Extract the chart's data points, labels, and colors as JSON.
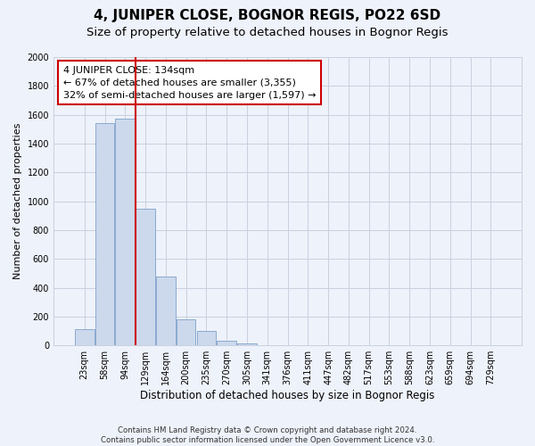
{
  "title": "4, JUNIPER CLOSE, BOGNOR REGIS, PO22 6SD",
  "subtitle": "Size of property relative to detached houses in Bognor Regis",
  "xlabel": "Distribution of detached houses by size in Bognor Regis",
  "ylabel": "Number of detached properties",
  "bin_labels": [
    "23sqm",
    "58sqm",
    "94sqm",
    "129sqm",
    "164sqm",
    "200sqm",
    "235sqm",
    "270sqm",
    "305sqm",
    "341sqm",
    "376sqm",
    "411sqm",
    "447sqm",
    "482sqm",
    "517sqm",
    "553sqm",
    "588sqm",
    "623sqm",
    "659sqm",
    "694sqm",
    "729sqm"
  ],
  "bar_values": [
    110,
    1540,
    1570,
    950,
    480,
    180,
    100,
    35,
    15,
    0,
    0,
    0,
    0,
    0,
    0,
    0,
    0,
    0,
    0,
    0,
    0
  ],
  "bar_color": "#ccd9ec",
  "bar_edge_color": "#8aaacf",
  "vline_x_index": 3,
  "vline_color": "#cc0000",
  "ylim": [
    0,
    2000
  ],
  "yticks": [
    0,
    200,
    400,
    600,
    800,
    1000,
    1200,
    1400,
    1600,
    1800,
    2000
  ],
  "annotation_box_text": "4 JUNIPER CLOSE: 134sqm\n← 67% of detached houses are smaller (3,355)\n32% of semi-detached houses are larger (1,597) →",
  "footnote": "Contains HM Land Registry data © Crown copyright and database right 2024.\nContains public sector information licensed under the Open Government Licence v3.0.",
  "bg_color": "#eef2fa",
  "plot_bg_color": "#eef2fa",
  "grid_color": "#c8d0e0",
  "title_fontsize": 11,
  "subtitle_fontsize": 9.5,
  "ylabel_fontsize": 8,
  "xlabel_fontsize": 8.5,
  "tick_fontsize": 7,
  "annot_fontsize": 8
}
